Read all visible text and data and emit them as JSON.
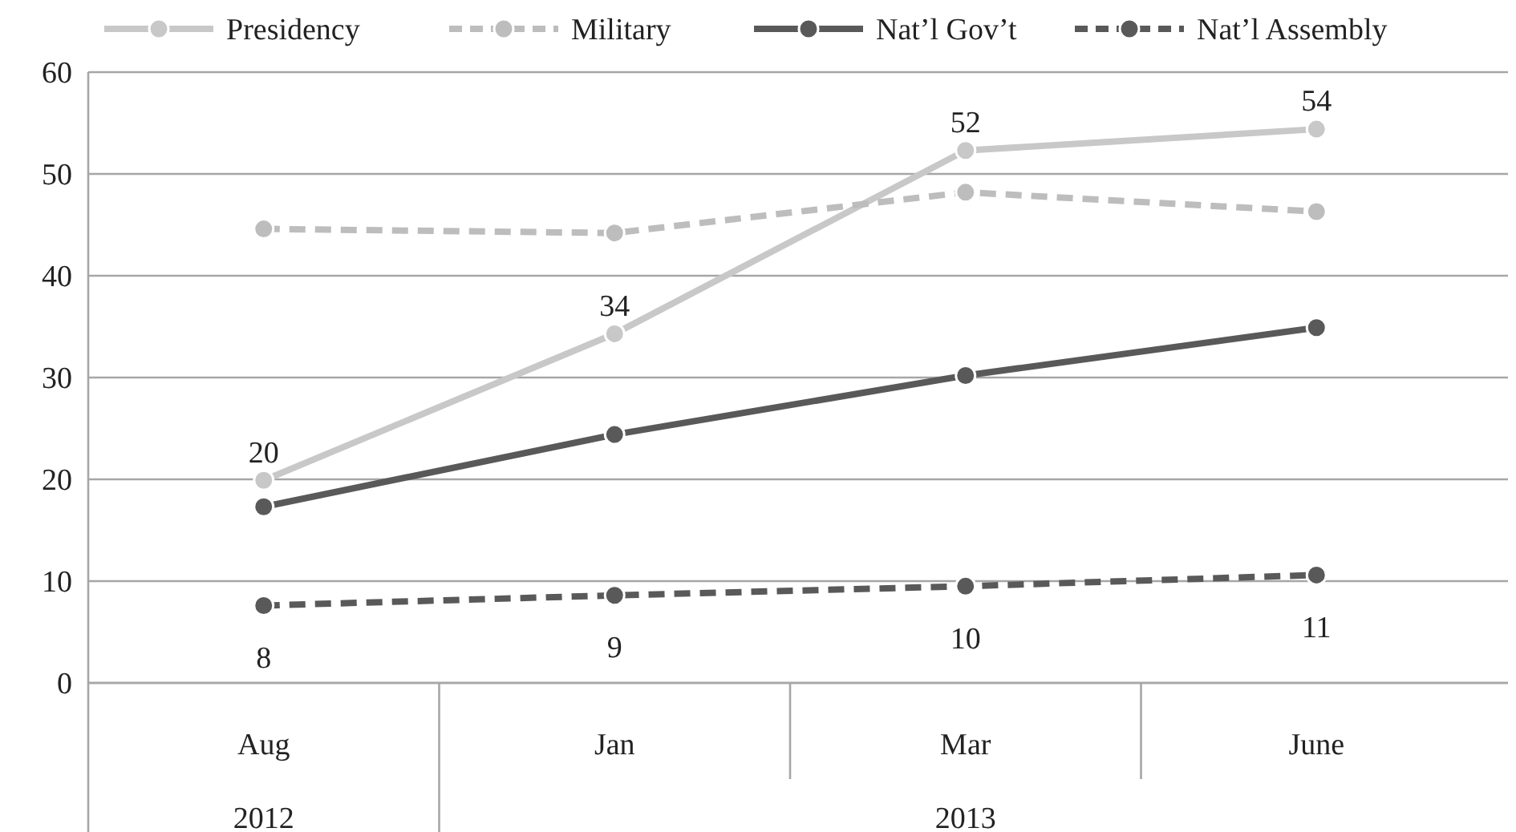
{
  "chart_data": {
    "type": "line",
    "categories": [
      "Aug",
      "Jan",
      "Mar",
      "June"
    ],
    "series": [
      {
        "name": "Presidency",
        "color": "#c8c8c8",
        "line_style": "solid",
        "values": [
          19.9,
          34.3,
          52.3,
          54.4
        ],
        "value_labels": [
          "20",
          "34",
          "52",
          "54"
        ]
      },
      {
        "name": "Military",
        "color": "#bdbdbd",
        "line_style": "dashed",
        "values": [
          44.6,
          44.2,
          48.2,
          46.3
        ]
      },
      {
        "name": "Nat’l Gov’t",
        "color": "#595959",
        "line_style": "solid",
        "values": [
          17.3,
          24.4,
          30.2,
          34.9
        ]
      },
      {
        "name": "Nat’l Assembly",
        "color": "#595959",
        "line_style": "dashed",
        "values": [
          7.6,
          8.6,
          9.5,
          10.6
        ],
        "value_labels": [
          "8",
          "9",
          "10",
          "11"
        ]
      }
    ],
    "ylim": [
      0,
      60
    ],
    "yticks": [
      0,
      10,
      20,
      30,
      40,
      50,
      60
    ],
    "grid": "y",
    "legend": "top",
    "marker": "circle",
    "annotations": [
      "2012",
      "2013"
    ]
  }
}
